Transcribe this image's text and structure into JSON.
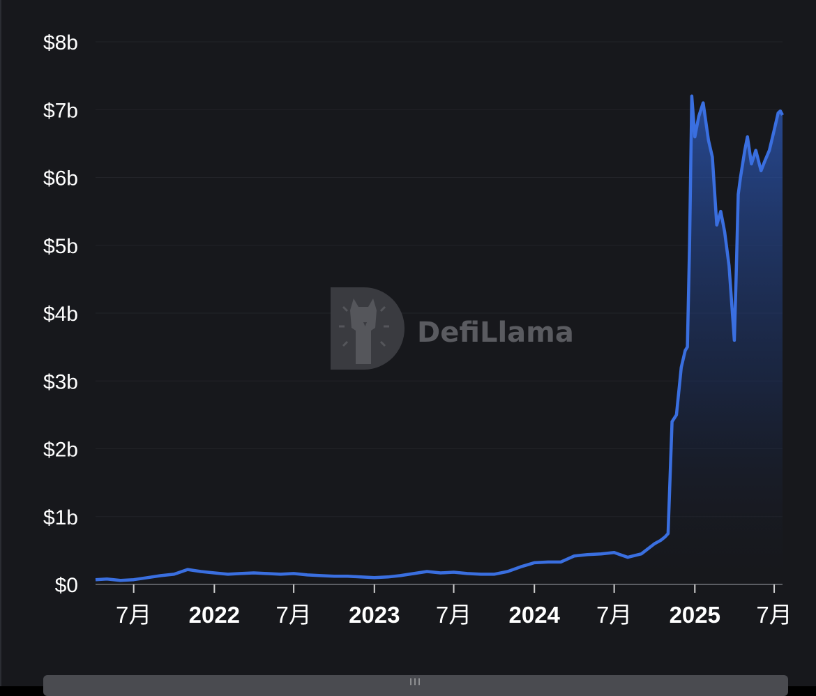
{
  "watermark": {
    "text": "DefiLlama",
    "logo_icon": "llama-logo-icon"
  },
  "colors": {
    "background": "#17181c",
    "line": "#3a6fe0",
    "area_top": "#2d5bbd",
    "axis": "#5b5d63",
    "text": "#ffffff"
  },
  "scrollbar": {
    "grip_icon": "grip-lines-icon"
  },
  "chart_data": {
    "type": "area",
    "title": "",
    "xlabel": "",
    "ylabel": "",
    "y_unit": "USD billions",
    "ylim": [
      0,
      8
    ],
    "y_ticks": [
      "$0",
      "$1b",
      "$2b",
      "$3b",
      "$4b",
      "$5b",
      "$6b",
      "$7b",
      "$8b"
    ],
    "x_ticks": [
      {
        "date": "2021-07-01",
        "label": "7月",
        "major": false
      },
      {
        "date": "2022-01-01",
        "label": "2022",
        "major": true
      },
      {
        "date": "2022-07-01",
        "label": "7月",
        "major": false
      },
      {
        "date": "2023-01-01",
        "label": "2023",
        "major": true
      },
      {
        "date": "2023-07-01",
        "label": "7月",
        "major": false
      },
      {
        "date": "2024-01-01",
        "label": "2024",
        "major": true
      },
      {
        "date": "2024-07-01",
        "label": "7月",
        "major": false
      },
      {
        "date": "2025-01-01",
        "label": "2025",
        "major": true
      },
      {
        "date": "2025-07-01",
        "label": "7月",
        "major": false
      }
    ],
    "xlim": [
      "2021-04-05",
      "2025-07-20"
    ],
    "grid": "horizontal",
    "legend": "none",
    "series": [
      {
        "x": [
          "2021-04-05",
          "2021-05-01",
          "2021-06-01",
          "2021-07-01",
          "2021-08-01",
          "2021-09-01",
          "2021-10-01",
          "2021-11-01",
          "2021-12-01",
          "2022-01-01",
          "2022-02-01",
          "2022-03-01",
          "2022-04-01",
          "2022-05-01",
          "2022-06-01",
          "2022-07-01",
          "2022-08-01",
          "2022-09-01",
          "2022-10-01",
          "2022-11-01",
          "2022-12-01",
          "2023-01-01",
          "2023-02-01",
          "2023-03-01",
          "2023-04-01",
          "2023-05-01",
          "2023-06-01",
          "2023-07-01",
          "2023-08-01",
          "2023-09-01",
          "2023-10-01",
          "2023-11-01",
          "2023-12-01",
          "2024-01-01",
          "2024-02-01",
          "2024-03-01",
          "2024-04-01",
          "2024-05-01",
          "2024-06-01",
          "2024-07-01",
          "2024-08-01",
          "2024-09-01",
          "2024-10-01",
          "2024-10-15",
          "2024-10-25",
          "2024-11-01",
          "2024-11-10",
          "2024-11-20",
          "2024-12-01",
          "2024-12-10",
          "2024-12-15",
          "2024-12-20",
          "2024-12-25",
          "2025-01-01",
          "2025-01-10",
          "2025-01-20",
          "2025-02-01",
          "2025-02-10",
          "2025-02-20",
          "2025-03-01",
          "2025-03-10",
          "2025-03-20",
          "2025-04-01",
          "2025-04-05",
          "2025-04-10",
          "2025-04-15",
          "2025-04-25",
          "2025-05-01",
          "2025-05-10",
          "2025-05-20",
          "2025-06-01",
          "2025-06-10",
          "2025-06-20",
          "2025-07-01",
          "2025-07-10",
          "2025-07-15",
          "2025-07-20"
        ],
        "y": [
          0.07,
          0.08,
          0.06,
          0.07,
          0.1,
          0.13,
          0.15,
          0.22,
          0.19,
          0.17,
          0.15,
          0.16,
          0.17,
          0.16,
          0.15,
          0.16,
          0.14,
          0.13,
          0.12,
          0.12,
          0.11,
          0.1,
          0.11,
          0.13,
          0.16,
          0.19,
          0.17,
          0.18,
          0.16,
          0.15,
          0.15,
          0.19,
          0.26,
          0.32,
          0.33,
          0.33,
          0.42,
          0.44,
          0.45,
          0.47,
          0.4,
          0.45,
          0.6,
          0.65,
          0.7,
          0.75,
          2.4,
          2.5,
          3.2,
          3.45,
          3.5,
          5.0,
          7.2,
          6.6,
          6.9,
          7.1,
          6.55,
          6.3,
          5.3,
          5.5,
          5.2,
          4.7,
          3.6,
          4.5,
          5.75,
          6.0,
          6.4,
          6.6,
          6.2,
          6.4,
          6.1,
          6.25,
          6.4,
          6.7,
          6.95,
          6.98,
          6.92
        ]
      }
    ]
  }
}
